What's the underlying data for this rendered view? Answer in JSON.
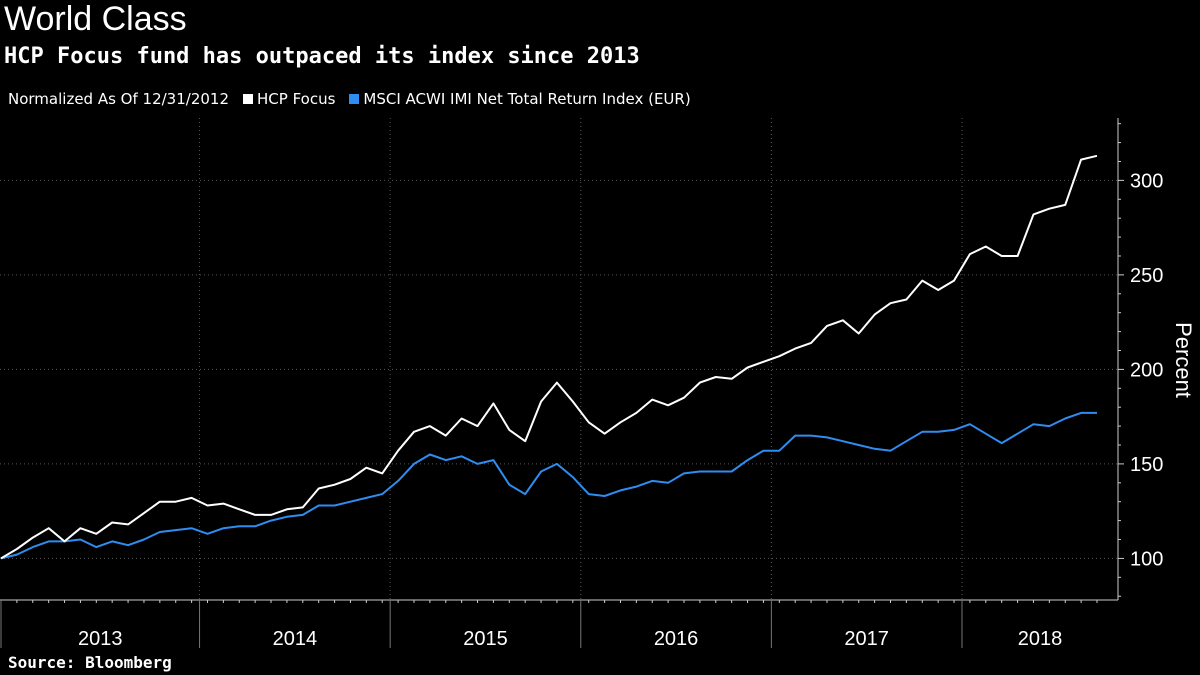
{
  "header": {
    "title": "World Class",
    "subtitle": "HCP Focus fund has outpaced its index since 2013"
  },
  "legend": {
    "normalized_label": "Normalized As Of 12/31/2012",
    "items": [
      {
        "label": "HCP Focus",
        "color": "#ffffff"
      },
      {
        "label": "MSCI ACWI IMI Net Total Return Index (EUR)",
        "color": "#2f8cf0"
      }
    ]
  },
  "footer": {
    "source": "Source: Bloomberg"
  },
  "chart_data": {
    "type": "line",
    "title": "World Class",
    "subtitle": "HCP Focus fund has outpaced its index since 2013",
    "xlabel": "",
    "ylabel": "Percent",
    "x_start": "2012-12",
    "x_frequency": "monthly",
    "x_tick_labels": [
      "2013",
      "2014",
      "2015",
      "2016",
      "2017",
      "2018"
    ],
    "ylim": [
      78,
      333
    ],
    "y_ticks": [
      100,
      150,
      200,
      250,
      300
    ],
    "grid": true,
    "legend_position": "top-left",
    "series": [
      {
        "name": "HCP Focus",
        "color": "#ffffff",
        "values": [
          100,
          105,
          111,
          116,
          109,
          116,
          113,
          119,
          118,
          124,
          130,
          130,
          132,
          128,
          129,
          126,
          123,
          123,
          126,
          127,
          137,
          139,
          142,
          148,
          145,
          157,
          167,
          170,
          165,
          174,
          170,
          182,
          168,
          162,
          183,
          193,
          183,
          172,
          166,
          172,
          177,
          184,
          181,
          185,
          193,
          196,
          195,
          201,
          204,
          207,
          211,
          214,
          223,
          226,
          219,
          229,
          235,
          237,
          247,
          242,
          247,
          261,
          265,
          260,
          260,
          282,
          285,
          287,
          311,
          313
        ]
      },
      {
        "name": "MSCI ACWI IMI Net Total Return Index (EUR)",
        "color": "#2f8cf0",
        "values": [
          100,
          102,
          106,
          109,
          109,
          110,
          106,
          109,
          107,
          110,
          114,
          115,
          116,
          113,
          116,
          117,
          117,
          120,
          122,
          123,
          128,
          128,
          130,
          132,
          134,
          141,
          150,
          155,
          152,
          154,
          150,
          152,
          139,
          134,
          146,
          150,
          143,
          134,
          133,
          136,
          138,
          141,
          140,
          145,
          146,
          146,
          146,
          152,
          157,
          157,
          165,
          165,
          164,
          162,
          160,
          158,
          157,
          162,
          167,
          167,
          168,
          171,
          166,
          161,
          166,
          171,
          170,
          174,
          177,
          177
        ]
      }
    ]
  }
}
